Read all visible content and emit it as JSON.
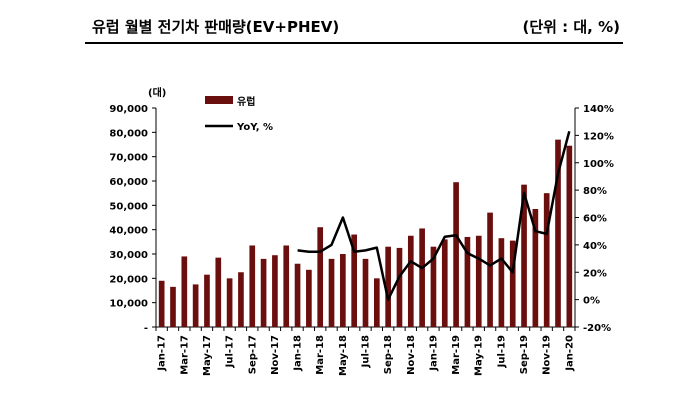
{
  "page": {
    "title": "유럽 월별 전기차 판매량(EV+PHEV)",
    "unit": "(단위 : 대, %)"
  },
  "chart_data": {
    "type": "bar",
    "categories": [
      "Jan-17",
      "Feb-17",
      "Mar-17",
      "Apr-17",
      "May-17",
      "Jun-17",
      "Jul-17",
      "Aug-17",
      "Sep-17",
      "Oct-17",
      "Nov-17",
      "Dec-17",
      "Jan-18",
      "Feb-18",
      "Mar-18",
      "Apr-18",
      "May-18",
      "Jun-18",
      "Jul-18",
      "Aug-18",
      "Sep-18",
      "Oct-18",
      "Nov-18",
      "Dec-18",
      "Jan-19",
      "Feb-19",
      "Mar-19",
      "Apr-19",
      "May-19",
      "Jun-19",
      "Jul-19",
      "Aug-19",
      "Sep-19",
      "Oct-19",
      "Nov-19",
      "Dec-19",
      "Jan-20"
    ],
    "x_tick_labels": [
      "Jan-17",
      "Mar-17",
      "May-17",
      "Jul-17",
      "Sep-17",
      "Nov-17",
      "Jan-18",
      "Mar-18",
      "May-18",
      "Jul-18",
      "Sep-18",
      "Nov-18",
      "Jan-19",
      "Mar-19",
      "May-19",
      "Jul-19",
      "Sep-19",
      "Nov-19",
      "Jan-20"
    ],
    "y_unit_label": "(대)",
    "ylim": [
      0,
      90000
    ],
    "y_ticks": [
      "-",
      "10,000",
      "20,000",
      "30,000",
      "40,000",
      "50,000",
      "60,000",
      "70,000",
      "80,000",
      "90,000"
    ],
    "y2lim": [
      -20,
      140
    ],
    "y2_ticks": [
      "-20%",
      "0%",
      "20%",
      "40%",
      "60%",
      "80%",
      "100%",
      "120%",
      "140%"
    ],
    "legend_position": "top-left",
    "grid": false,
    "series": [
      {
        "name": "유럽",
        "type": "bar",
        "axis": "left",
        "color": "#6b0e0e",
        "values": [
          19000,
          16500,
          29000,
          17500,
          21500,
          28500,
          20000,
          22500,
          33500,
          28000,
          29500,
          33500,
          26000,
          23500,
          41000,
          28000,
          30000,
          38000,
          28000,
          20000,
          33000,
          32500,
          37500,
          40500,
          33000,
          36000,
          59500,
          37000,
          37500,
          47000,
          36500,
          35500,
          58500,
          48500,
          55000,
          77000,
          74500
        ]
      },
      {
        "name": "YoY, %",
        "type": "line",
        "axis": "right",
        "color": "#000000",
        "values": [
          null,
          null,
          null,
          null,
          null,
          null,
          null,
          null,
          null,
          null,
          null,
          null,
          36,
          35,
          35,
          40,
          60,
          35,
          36,
          38,
          0,
          17,
          28,
          23,
          30,
          46,
          47,
          34,
          30,
          25,
          30,
          20,
          78,
          50,
          48,
          92,
          123
        ]
      }
    ]
  }
}
